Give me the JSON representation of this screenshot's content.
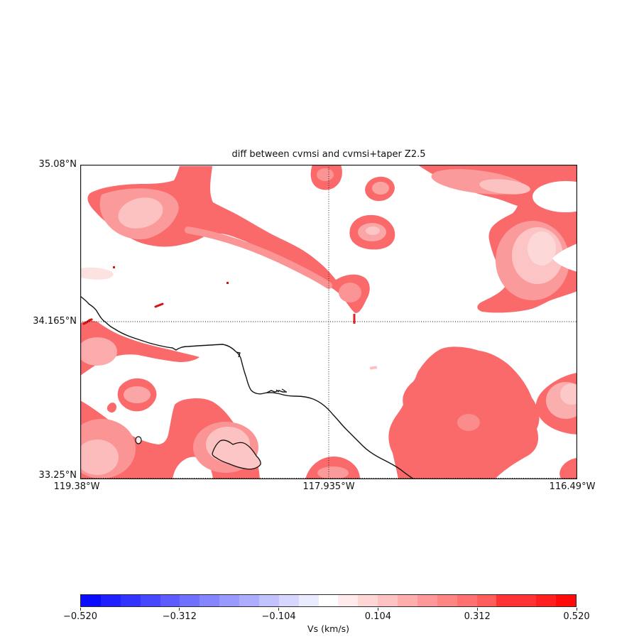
{
  "title": "diff between cvmsi and cvmsi+taper Z2.5",
  "axes": {
    "y_tick_labels": [
      "35.08°N",
      "34.165°N",
      "33.25°N"
    ],
    "x_tick_labels": [
      "119.38°W",
      "117.935°W",
      "116.49°W"
    ]
  },
  "colorbar": {
    "label": "Vs (km/s)",
    "tick_labels": [
      "−0.520",
      "−0.312",
      "−0.104",
      "0.104",
      "0.312",
      "0.520"
    ],
    "segment_colors": [
      "#0A0AFF",
      "#1F1FFF",
      "#3333FF",
      "#4747FF",
      "#5C5CFF",
      "#7070FF",
      "#8585FF",
      "#9999FF",
      "#ADADFF",
      "#C2C2FF",
      "#D6D6FF",
      "#EBEBFF",
      "#FFFFFF",
      "#FFEBEB",
      "#FFD6D6",
      "#FFC2C2",
      "#FFADAD",
      "#FF9999",
      "#FF8585",
      "#FF7070",
      "#FF5C5C",
      "#FF3333",
      "#FF3333",
      "#FF1F1F",
      "#FF0A0A"
    ]
  },
  "colors": {
    "contour_rim_red": "#fa6a6a",
    "contour_mid_pink": "#fb9898",
    "contour_light_pink": "#fcc2c2",
    "contour_lightest_pink": "#fdd6d6",
    "spot_bright_red": "#d41414",
    "coastline_black": "#111111"
  },
  "chart_data": {
    "type": "heatmap",
    "title": "diff between cvmsi and cvmsi+taper Z2.5",
    "value_label": "Vs (km/s)",
    "value_range": [
      -0.52,
      0.52
    ],
    "colorbar_ticks": [
      -0.52,
      -0.312,
      -0.104,
      0.104,
      0.312,
      0.52
    ],
    "colormap": "bwr, 25 discrete levels",
    "x_axis": {
      "label_ticks": [
        "119.38°W",
        "117.935°W",
        "116.49°W"
      ],
      "range_deg_west": [
        119.38,
        116.49
      ]
    },
    "y_axis": {
      "label_ticks": [
        "33.25°N",
        "34.165°N",
        "35.08°N"
      ],
      "range_deg_north": [
        33.25,
        35.08
      ]
    },
    "gridlines": {
      "dotted_crosshair_lon_west": 117.935,
      "dotted_crosshair_lat_north": 34.165
    },
    "description": "Filled-contour difference map over Southern California; all visible anomalies are positive (pink-to-red, roughly +0.05 to +0.3 km/s) blobs on a white (~0) background: a large hooked region in the NW quadrant trailing SE, scattered blobs along the top and a large mass in the NE corner, a broad region in the SW with Santa Catalina Island outlined, and a large lobe in the SE quadrant. Black coastline and islands drawn over the field; dotted crosshair at 117.935°W / 34.165°N."
  }
}
